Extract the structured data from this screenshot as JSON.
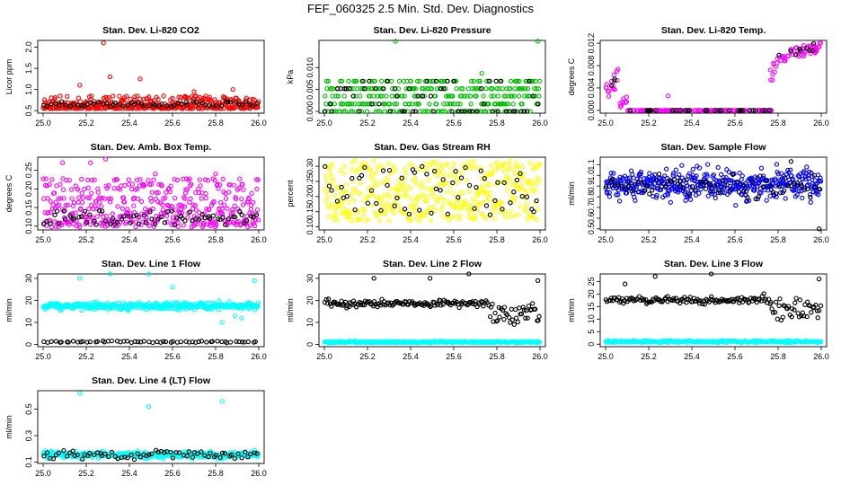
{
  "figure_title": "FEF_060325  2.5 Min. Std. Dev. Diagnostics",
  "chart_data": [
    {
      "type": "scatter",
      "title": "Stan. Dev. Li-820 CO2",
      "ylabel": "Licor ppm",
      "xlim": [
        25.0,
        26.0
      ],
      "ylim": [
        0.44,
        2.16
      ],
      "xticks": [
        "25.0",
        "25.2",
        "25.4",
        "25.6",
        "25.8",
        "26.0"
      ],
      "yticks": [
        "0.5",
        "1.0",
        "1.5",
        "2.0"
      ],
      "colors": {
        "main": "#ff0000",
        "secondary": "#000000"
      },
      "series": [
        {
          "gen": {
            "seed": 11,
            "n": 380,
            "min": 0.45,
            "max": 1.2,
            "base": 0.55,
            "spread": 0.3,
            "bias": 2.2
          },
          "extra": [
            [
              25.17,
              1.1
            ],
            [
              25.28,
              2.1
            ],
            [
              25.31,
              1.3
            ],
            [
              25.45,
              1.25
            ],
            [
              25.7,
              0.95
            ],
            [
              25.88,
              1.0
            ]
          ]
        },
        {
          "gen": {
            "seed": 12,
            "n": 60,
            "min": 0.55,
            "max": 0.8,
            "base": 0.6,
            "spread": 0.12,
            "bias": 1.3
          }
        }
      ]
    },
    {
      "type": "scatter",
      "title": "Stan. Dev. Li-820 Pressure",
      "ylabel": "kPa",
      "xlim": [
        25.0,
        26.0
      ],
      "ylim": [
        -0.0004,
        0.0162
      ],
      "xticks": [
        "25.0",
        "25.2",
        "25.4",
        "25.6",
        "25.8",
        "26.0"
      ],
      "yticks": [
        "0.000",
        "0.005",
        "0.010"
      ],
      "colors": {
        "main": "#00c000",
        "secondary": "#000000"
      },
      "series": [
        {
          "gen": {
            "seed": 21,
            "n": 330,
            "levels": [
              0,
              0.0017,
              0.0035,
              0.0052,
              0.0069
            ]
          },
          "extra": [
            [
              25.33,
              0.016
            ],
            [
              25.99,
              0.016
            ],
            [
              25.73,
              0.0087
            ]
          ]
        },
        {
          "gen": {
            "seed": 22,
            "n": 60,
            "levels": [
              0,
              0,
              0,
              0.0017,
              0.0035,
              0.0052,
              0.0069
            ]
          }
        }
      ]
    },
    {
      "type": "scatter",
      "title": "Stan. Dev. Li-820 Temp.",
      "ylabel": "degrees C",
      "xlim": [
        25.0,
        26.0
      ],
      "ylim": [
        -0.0005,
        0.0125
      ],
      "xticks": [
        "25.0",
        "25.2",
        "25.4",
        "25.6",
        "25.8",
        "26.0"
      ],
      "yticks": [
        "0.000",
        "0.004",
        "0.008",
        "0.012"
      ],
      "colors": {
        "main": "#ff00ff",
        "secondary": "#000000"
      },
      "series": [
        {
          "gen": {
            "seed": 31,
            "n": 260,
            "segments": [
              {
                "x": [
                  25.0,
                  25.06
                ],
                "y": [
                  0.0015,
                  0.0075
                ]
              },
              {
                "x": [
                  25.06,
                  25.1
                ],
                "y": [
                  0.0,
                  0.003
                ]
              },
              {
                "x": [
                  25.1,
                  25.77
                ],
                "y": [
                  0.0,
                  0.0
                ]
              },
              {
                "x": [
                  25.76,
                  25.8
                ],
                "y": [
                  0.004,
                  0.0105
                ]
              },
              {
                "x": [
                  25.8,
                  26.0
                ],
                "y": [
                  0.0085,
                  0.0125
                ]
              }
            ]
          },
          "extra": [
            [
              25.29,
              0.0026
            ]
          ]
        },
        {
          "gen": {
            "seed": 32,
            "n": 40,
            "segments": [
              {
                "x": [
                  25.02,
                  25.05
                ],
                "y": [
                  0.004,
                  0.006
                ]
              },
              {
                "x": [
                  25.1,
                  25.77
                ],
                "y": [
                  0.0,
                  0.0
                ]
              },
              {
                "x": [
                  25.8,
                  26.0
                ],
                "y": [
                  0.009,
                  0.0125
                ]
              }
            ]
          }
        }
      ]
    },
    {
      "type": "scatter",
      "title": "Stan. Dev. Amb. Box Temp.",
      "ylabel": "degrees C",
      "xlim": [
        25.0,
        26.0
      ],
      "ylim": [
        0.09,
        0.285
      ],
      "xticks": [
        "25.0",
        "25.2",
        "25.4",
        "25.6",
        "25.8",
        "26.0"
      ],
      "yticks": [
        "0.10",
        "0.15",
        "0.20",
        "0.25"
      ],
      "colors": {
        "main": "#ff00ff",
        "secondary": "#000000"
      },
      "series": [
        {
          "gen": {
            "seed": 41,
            "n": 420,
            "levels": [
              0.1,
              0.105,
              0.11,
              0.115,
              0.125,
              0.135,
              0.145,
              0.155,
              0.165,
              0.175,
              0.19,
              0.2,
              0.21,
              0.225
            ],
            "jitter": 0.0025
          },
          "extra": [
            [
              25.09,
              0.27
            ],
            [
              25.22,
              0.27
            ],
            [
              25.29,
              0.28
            ],
            [
              25.52,
              0.24
            ],
            [
              25.8,
              0.24
            ]
          ]
        },
        {
          "gen": {
            "seed": 42,
            "n": 70,
            "levels": [
              0.105,
              0.11,
              0.115,
              0.12,
              0.125,
              0.13,
              0.14
            ],
            "jitter": 0.002
          }
        }
      ]
    },
    {
      "type": "scatter",
      "title": "Stan. Dev. Gas Stream RH",
      "ylabel": "percent",
      "xlim": [
        25.0,
        26.0
      ],
      "ylim": [
        0.09,
        0.33
      ],
      "xticks": [
        "25.0",
        "25.2",
        "25.4",
        "25.6",
        "25.8",
        "26.0"
      ],
      "yticks": [
        "0.10",
        "0.15",
        "0.20",
        "0.25",
        "0.30"
      ],
      "colors": {
        "main": "#ffff00",
        "secondary": "#000000"
      },
      "series": [
        {
          "gen": {
            "seed": 51,
            "n": 420,
            "min": 0.11,
            "max": 0.33,
            "base": 0.12,
            "spread": 0.2,
            "bias": 1.1
          }
        },
        {
          "gen": {
            "seed": 52,
            "n": 60,
            "min": 0.13,
            "max": 0.31,
            "base": 0.14,
            "spread": 0.16,
            "bias": 1.0
          }
        }
      ]
    },
    {
      "type": "scatter",
      "title": "Stan. Dev. Sample Flow",
      "ylabel": "ml/min",
      "xlim": [
        25.0,
        26.0
      ],
      "ylim": [
        0.49,
        1.17
      ],
      "xticks": [
        "25.0",
        "25.2",
        "25.4",
        "25.6",
        "25.8",
        "26.0"
      ],
      "yticks": [
        "0.5",
        "0.6",
        "0.7",
        "0.8",
        "0.9",
        "1.0",
        "1.1"
      ],
      "colors": {
        "main": "#0000ff",
        "secondary": "#000000"
      },
      "series": [
        {
          "gen": {
            "seed": 61,
            "n": 440,
            "min": 0.72,
            "max": 1.13,
            "center": 0.92,
            "sd": 0.07
          }
        },
        {
          "gen": {
            "seed": 62,
            "n": 70,
            "min": 0.78,
            "max": 1.05,
            "center": 0.9,
            "sd": 0.05
          },
          "extra": [
            [
              25.99,
              0.5
            ],
            [
              25.86,
              1.13
            ]
          ]
        }
      ]
    },
    {
      "type": "scatter",
      "title": "Stan. Dev. Line 1 Flow",
      "ylabel": "ml/min",
      "xlim": [
        25.0,
        26.0
      ],
      "ylim": [
        -1,
        32
      ],
      "xticks": [
        "25.0",
        "25.2",
        "25.4",
        "25.6",
        "25.8",
        "26.0"
      ],
      "yticks": [
        "0",
        "10",
        "20",
        "30"
      ],
      "colors": {
        "main": "#00ffff",
        "secondary": "#000000"
      },
      "series": [
        {
          "gen": {
            "seed": 71,
            "n": 380,
            "min": 10,
            "max": 22,
            "center": 17.5,
            "sd": 0.8
          },
          "extra": [
            [
              25.17,
              30
            ],
            [
              25.31,
              32
            ],
            [
              25.49,
              32
            ],
            [
              25.6,
              26
            ],
            [
              25.98,
              29
            ],
            [
              25.83,
              10
            ],
            [
              25.89,
              13
            ],
            [
              25.92,
              12
            ],
            [
              25.95,
              19
            ]
          ]
        },
        {
          "gen": {
            "seed": 72,
            "n": 60,
            "min": 0.8,
            "max": 1.6,
            "center": 1.2,
            "sd": 0.2
          }
        }
      ]
    },
    {
      "type": "scatter",
      "title": "Stan. Dev. Line 2 Flow",
      "ylabel": "ml/min",
      "xlim": [
        25.0,
        26.0
      ],
      "ylim": [
        -1,
        32
      ],
      "xticks": [
        "25.0",
        "25.2",
        "25.4",
        "25.6",
        "25.8",
        "26.0"
      ],
      "yticks": [
        "0",
        "10",
        "20",
        "30"
      ],
      "colors": {
        "main": "#00ffff",
        "secondary": "#000000"
      },
      "series": [
        {
          "gen": {
            "seed": 81,
            "n": 300,
            "min": 0.7,
            "max": 1.6,
            "center": 1.1,
            "sd": 0.2
          }
        },
        {
          "gen": {
            "seed": 82,
            "n": 170,
            "min": 9,
            "max": 22,
            "center": 18.5,
            "sd": 0.8,
            "dip": true
          },
          "extra": [
            [
              25.23,
              30
            ],
            [
              25.49,
              30
            ],
            [
              25.67,
              32
            ],
            [
              25.99,
              29
            ]
          ]
        }
      ]
    },
    {
      "type": "scatter",
      "title": "Stan. Dev. Line 3 Flow",
      "ylabel": "ml/min",
      "xlim": [
        25.0,
        26.0
      ],
      "ylim": [
        -1,
        28
      ],
      "xticks": [
        "25.0",
        "25.2",
        "25.4",
        "25.6",
        "25.8",
        "26.0"
      ],
      "yticks": [
        "0",
        "5",
        "10",
        "15",
        "20",
        "25"
      ],
      "colors": {
        "main": "#00ffff",
        "secondary": "#000000"
      },
      "series": [
        {
          "gen": {
            "seed": 91,
            "n": 300,
            "min": 0.6,
            "max": 1.5,
            "center": 1.0,
            "sd": 0.2
          }
        },
        {
          "gen": {
            "seed": 92,
            "n": 170,
            "min": 9,
            "max": 21,
            "center": 17.5,
            "sd": 0.7,
            "dip": true
          },
          "extra": [
            [
              25.09,
              24
            ],
            [
              25.23,
              27
            ],
            [
              25.49,
              28
            ],
            [
              25.99,
              26
            ]
          ]
        }
      ]
    },
    {
      "type": "scatter",
      "title": "Stan. Dev. Line 4 (LT) Flow",
      "ylabel": "ml/min",
      "xlim": [
        25.0,
        26.0
      ],
      "ylim": [
        0.09,
        0.64
      ],
      "xticks": [
        "25.0",
        "25.2",
        "25.4",
        "25.6",
        "25.8",
        "26.0"
      ],
      "yticks": [
        "0.1",
        "0.3",
        "0.5"
      ],
      "colors": {
        "main": "#00ffff",
        "secondary": "#000000"
      },
      "series": [
        {
          "gen": {
            "seed": 101,
            "n": 380,
            "min": 0.12,
            "max": 0.19,
            "center": 0.155,
            "sd": 0.012
          },
          "extra": [
            [
              25.17,
              0.62
            ],
            [
              25.49,
              0.52
            ],
            [
              25.83,
              0.56
            ]
          ]
        },
        {
          "gen": {
            "seed": 102,
            "n": 70,
            "min": 0.12,
            "max": 0.2,
            "center": 0.155,
            "sd": 0.015
          }
        }
      ]
    }
  ]
}
